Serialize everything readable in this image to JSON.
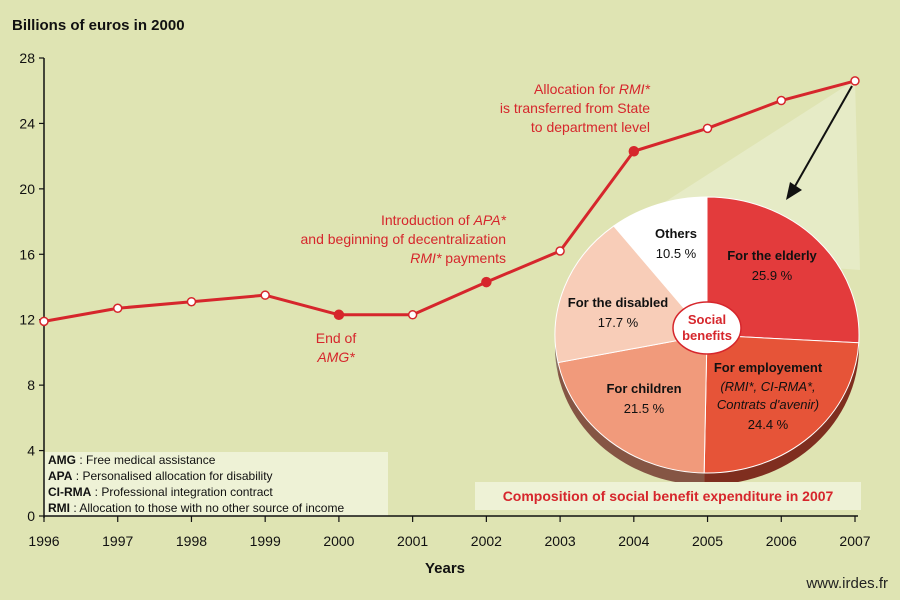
{
  "chart_data": [
    {
      "type": "line",
      "ylabel": "Billions of euros in 2000",
      "xlabel": "Years",
      "x": [
        1996,
        1997,
        1998,
        1999,
        2000,
        2001,
        2002,
        2003,
        2004,
        2005,
        2006,
        2007
      ],
      "series": [
        {
          "values": [
            11.9,
            12.7,
            13.1,
            13.5,
            12.3,
            12.3,
            14.3,
            16.2,
            22.3,
            23.7,
            25.4,
            26.6
          ]
        }
      ],
      "highlighted_points": [
        2000,
        2002,
        2004
      ],
      "ylim": [
        0,
        28
      ],
      "yticks": [
        0,
        4,
        8,
        12,
        16,
        20,
        24,
        28
      ],
      "xlim": [
        1996,
        2007
      ],
      "grid": false,
      "colors": {
        "line": "#d6262c",
        "background": "#dfe4b3"
      },
      "annotations": [
        {
          "x": 2000,
          "lines": [
            [
              {
                "t": "End of"
              }
            ],
            [
              {
                "t": "AMG*",
                "i": true
              }
            ]
          ]
        },
        {
          "x": 2002,
          "lines": [
            [
              {
                "t": "Introduction of "
              },
              {
                "t": "APA*",
                "i": true
              }
            ],
            [
              {
                "t": "and beginning of decentralization"
              }
            ],
            [
              {
                "t": "RMI*",
                "i": true
              },
              {
                "t": " payments"
              }
            ]
          ]
        },
        {
          "x": 2004,
          "lines": [
            [
              {
                "t": "Allocation for "
              },
              {
                "t": "RMI*",
                "i": true
              }
            ],
            [
              {
                "t": "is transferred from State"
              }
            ],
            [
              {
                "t": "to department level"
              }
            ]
          ]
        }
      ]
    },
    {
      "type": "pie",
      "title": "Social benefits",
      "caption": "Composition of social benefit expenditure in 2007",
      "slices": [
        {
          "label": "For the elderly",
          "value": 25.9,
          "pct": "25.9 %",
          "color": "#e33b3c"
        },
        {
          "label": "For employement",
          "sublabel": "(RMI*, CI-RMA*, Contrats d'avenir)",
          "value": 24.4,
          "pct": "24.4 %",
          "color": "#e65438"
        },
        {
          "label": "For children",
          "value": 21.5,
          "pct": "21.5 %",
          "color": "#f19a7b"
        },
        {
          "label": "For the disabled",
          "value": 17.7,
          "pct": "17.7 %",
          "color": "#f8cdb8"
        },
        {
          "label": "Others",
          "value": 10.5,
          "pct": "10.5 %",
          "color": "#ffffff"
        }
      ]
    }
  ],
  "glossary": [
    {
      "abbr": "AMG",
      "text": "Free medical assistance"
    },
    {
      "abbr": "APA",
      "text": "Personalised allocation for disability"
    },
    {
      "abbr": "CI-RMA",
      "text": "Professional integration contract"
    },
    {
      "abbr": "RMI",
      "text": "Allocation to those with no other source of income"
    }
  ],
  "source": "www.irdes.fr"
}
